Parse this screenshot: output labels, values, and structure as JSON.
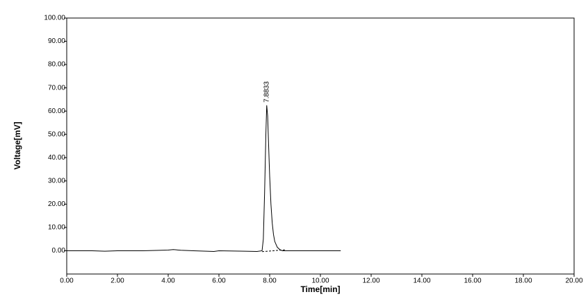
{
  "chart_data": {
    "type": "line",
    "xlabel": "Time[min]",
    "ylabel": "Voltage[mV]",
    "series": [
      {
        "color": "#000000",
        "dashed": false,
        "x": [
          0,
          0.5,
          1,
          1.5,
          2,
          3,
          4,
          4.2,
          4.5,
          5,
          5.8,
          6,
          7,
          7.5,
          7.7,
          7.75,
          7.8,
          7.85,
          7.8833,
          7.92,
          7.95,
          8.0,
          8.05,
          8.1,
          8.15,
          8.2,
          8.3,
          8.4,
          8.5,
          9,
          10,
          10.8
        ],
        "values": [
          0,
          0,
          0,
          -0.2,
          0,
          0,
          0.3,
          0.5,
          0.2,
          0,
          -0.3,
          0,
          -0.2,
          -0.3,
          0,
          5,
          25,
          50,
          62.5,
          58,
          48,
          32,
          20,
          12,
          7,
          4,
          1.5,
          0.5,
          0,
          0,
          0,
          0
        ]
      },
      {
        "color": "#000000",
        "dashed": true,
        "x": [
          7.7,
          8.6
        ],
        "values": [
          -0.4,
          0.4
        ]
      }
    ],
    "annotations": [
      {
        "text": "7.8833",
        "x": 7.8833,
        "y": 62.5
      }
    ],
    "xlim": [
      0,
      20
    ],
    "xticks": [
      {
        "value": 0,
        "label": "0.00"
      },
      {
        "value": 2,
        "label": "2.00"
      },
      {
        "value": 4,
        "label": "4.00"
      },
      {
        "value": 6,
        "label": "6.00"
      },
      {
        "value": 8,
        "label": "8.00"
      },
      {
        "value": 10,
        "label": "10.00"
      },
      {
        "value": 12,
        "label": "12.00"
      },
      {
        "value": 14,
        "label": "14.00"
      },
      {
        "value": 16,
        "label": "16.00"
      },
      {
        "value": 18,
        "label": "18.00"
      },
      {
        "value": 20,
        "label": "20.00"
      }
    ],
    "ylim": [
      -10,
      100
    ],
    "yticks": [
      {
        "value": 0,
        "label": "0.00"
      },
      {
        "value": 10,
        "label": "10.00"
      },
      {
        "value": 20,
        "label": "20.00"
      },
      {
        "value": 30,
        "label": "30.00"
      },
      {
        "value": 40,
        "label": "40.00"
      },
      {
        "value": 50,
        "label": "50.00"
      },
      {
        "value": 60,
        "label": "60.00"
      },
      {
        "value": 70,
        "label": "70.00"
      },
      {
        "value": 80,
        "label": "80.00"
      },
      {
        "value": 90,
        "label": "90.00"
      },
      {
        "value": 100,
        "label": "100.00"
      }
    ],
    "grid": false
  }
}
